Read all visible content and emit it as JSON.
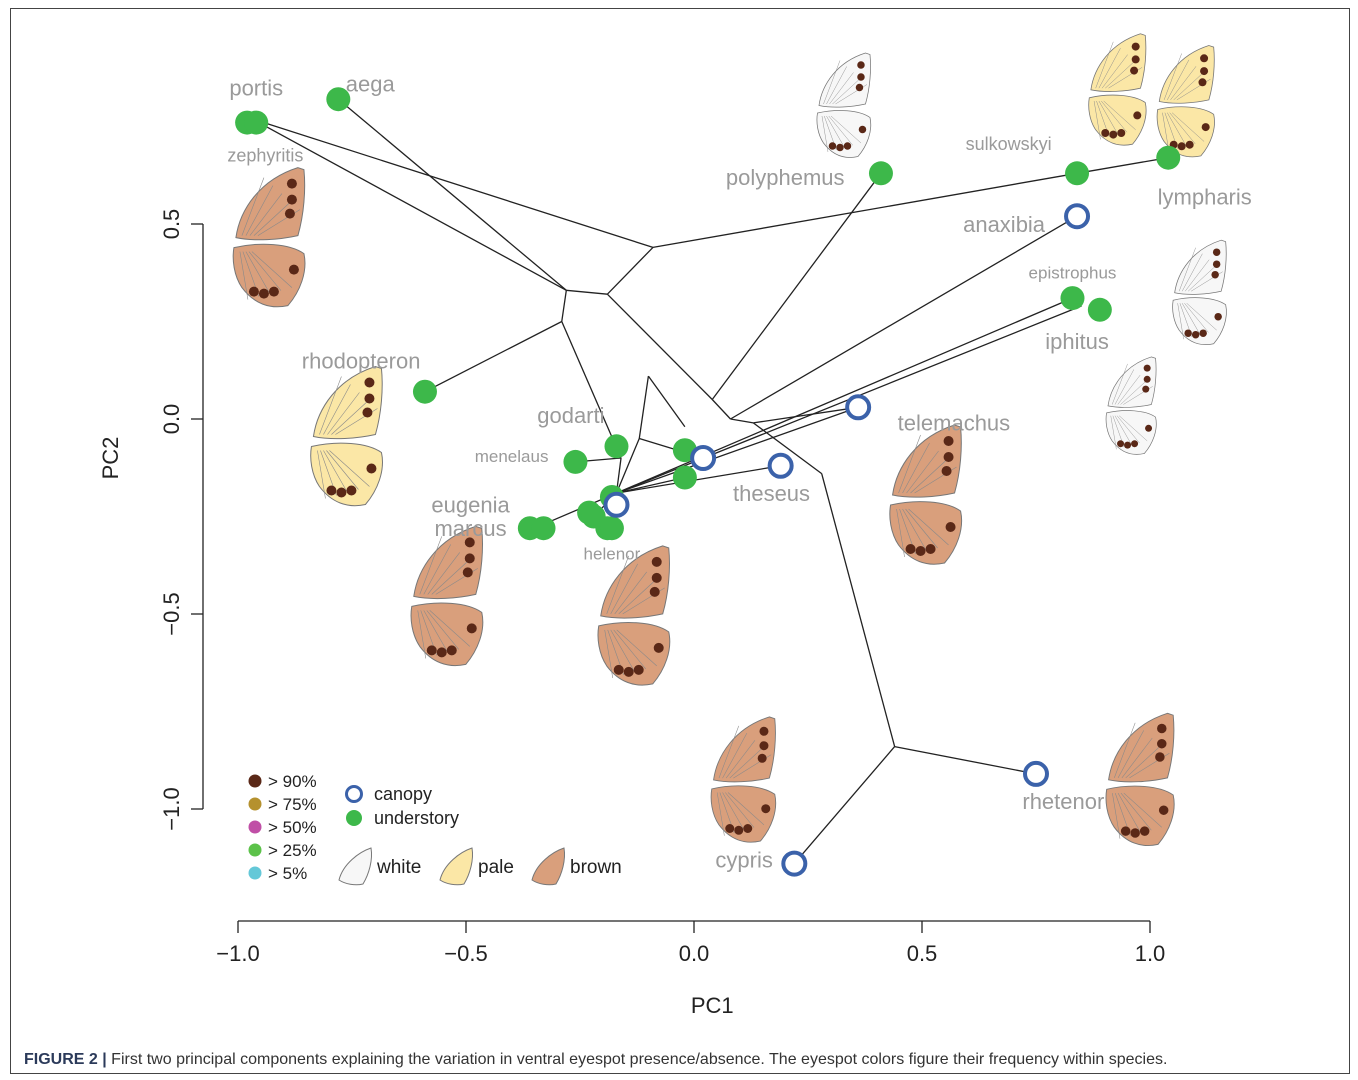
{
  "caption": {
    "label": "FIGURE 2 |",
    "text": "First two principal components explaining the variation in ventral eyespot presence/absence. The eyespot colors figure their frequency within species."
  },
  "colors": {
    "understory": "#3db84a",
    "canopy": "#3b62aa",
    "label": "#9a9a9a",
    "wing_white": "#f7f7f7",
    "wing_pale": "#fbe7a6",
    "wing_brown": "#d99f7c",
    "spot_90": "#5a2817",
    "spot_75": "#b5912e",
    "spot_50": "#c04fa6",
    "spot_25": "#5cc24a",
    "spot_5": "#64c8d8"
  },
  "chart_data": {
    "type": "scatter",
    "xlabel": "PC1",
    "ylabel": "PC2",
    "xlim": [
      -1.0,
      1.2
    ],
    "ylim": [
      -1.2,
      0.85
    ],
    "xticks": [
      "−1.0",
      "−0.5",
      "0.0",
      "0.5",
      "1.0"
    ],
    "xtick_values": [
      -1.0,
      -0.5,
      0.0,
      0.5,
      1.0
    ],
    "yticks": [
      "−1.0",
      "−0.5",
      "0.0",
      "0.5"
    ],
    "ytick_values": [
      -1.0,
      -0.5,
      0.0,
      0.5
    ],
    "points": [
      {
        "x": -0.98,
        "y": 0.76,
        "group": "understory"
      },
      {
        "x": -0.96,
        "y": 0.76,
        "group": "understory"
      },
      {
        "x": -0.78,
        "y": 0.82,
        "group": "understory"
      },
      {
        "x": -0.59,
        "y": 0.07,
        "group": "understory"
      },
      {
        "x": -0.26,
        "y": -0.11,
        "group": "understory"
      },
      {
        "x": -0.17,
        "y": -0.07,
        "group": "understory"
      },
      {
        "x": -0.36,
        "y": -0.28,
        "group": "understory"
      },
      {
        "x": -0.33,
        "y": -0.28,
        "group": "understory"
      },
      {
        "x": -0.23,
        "y": -0.24,
        "group": "understory"
      },
      {
        "x": -0.22,
        "y": -0.25,
        "group": "understory"
      },
      {
        "x": -0.19,
        "y": -0.28,
        "group": "understory"
      },
      {
        "x": -0.18,
        "y": -0.28,
        "group": "understory"
      },
      {
        "x": -0.18,
        "y": -0.2,
        "group": "understory"
      },
      {
        "x": -0.02,
        "y": -0.08,
        "group": "understory"
      },
      {
        "x": -0.02,
        "y": -0.15,
        "group": "understory"
      },
      {
        "x": 0.41,
        "y": 0.63,
        "group": "understory"
      },
      {
        "x": 0.84,
        "y": 0.63,
        "group": "understory"
      },
      {
        "x": 1.04,
        "y": 0.67,
        "group": "understory"
      },
      {
        "x": 0.83,
        "y": 0.31,
        "group": "understory"
      },
      {
        "x": 0.89,
        "y": 0.28,
        "group": "understory"
      },
      {
        "x": -0.17,
        "y": -0.22,
        "group": "canopy"
      },
      {
        "x": 0.02,
        "y": -0.1,
        "group": "canopy"
      },
      {
        "x": 0.19,
        "y": -0.12,
        "group": "canopy"
      },
      {
        "x": 0.36,
        "y": 0.03,
        "group": "canopy"
      },
      {
        "x": 0.84,
        "y": 0.52,
        "group": "canopy"
      },
      {
        "x": 0.75,
        "y": -0.91,
        "group": "canopy"
      },
      {
        "x": 0.22,
        "y": -1.14,
        "group": "canopy"
      }
    ],
    "labels": [
      {
        "text": "portis",
        "x": -0.96,
        "y": 0.83,
        "size": 22
      },
      {
        "text": "aega",
        "x": -0.71,
        "y": 0.84,
        "size": 22
      },
      {
        "text": "zephyritis",
        "x": -0.94,
        "y": 0.66,
        "size": 18
      },
      {
        "text": "polyphemus",
        "x": 0.2,
        "y": 0.6,
        "size": 22
      },
      {
        "text": "sulkowskyi",
        "x": 0.69,
        "y": 0.69,
        "size": 18
      },
      {
        "text": "lympharis",
        "x": 1.12,
        "y": 0.55,
        "size": 22
      },
      {
        "text": "anaxibia",
        "x": 0.68,
        "y": 0.48,
        "size": 22
      },
      {
        "text": "epistrophus",
        "x": 0.83,
        "y": 0.36,
        "size": 17
      },
      {
        "text": "iphitus",
        "x": 0.84,
        "y": 0.18,
        "size": 22
      },
      {
        "text": "rhodopteron",
        "x": -0.73,
        "y": 0.13,
        "size": 22
      },
      {
        "text": "godarti",
        "x": -0.27,
        "y": -0.01,
        "size": 22
      },
      {
        "text": "menelaus",
        "x": -0.4,
        "y": -0.11,
        "size": 17
      },
      {
        "text": "telemachus",
        "x": 0.57,
        "y": -0.03,
        "size": 22
      },
      {
        "text": "theseus",
        "x": 0.17,
        "y": -0.21,
        "size": 22
      },
      {
        "text": "eugenia",
        "x": -0.49,
        "y": -0.24,
        "size": 22
      },
      {
        "text": "marcus",
        "x": -0.49,
        "y": -0.3,
        "size": 22
      },
      {
        "text": "helenor",
        "x": -0.18,
        "y": -0.36,
        "size": 17
      },
      {
        "text": "rhetenor",
        "x": 0.81,
        "y": -1.0,
        "size": 22
      },
      {
        "text": "cypris",
        "x": 0.11,
        "y": -1.15,
        "size": 22
      }
    ],
    "edges": [
      [
        [
          -0.97,
          0.77
        ],
        [
          -0.09,
          0.44
        ]
      ],
      [
        [
          -0.97,
          0.77
        ],
        [
          -0.28,
          0.33
        ]
      ],
      [
        [
          -0.78,
          0.82
        ],
        [
          -0.28,
          0.33
        ]
      ],
      [
        [
          -0.09,
          0.44
        ],
        [
          -0.19,
          0.32
        ]
      ],
      [
        [
          -0.09,
          0.44
        ],
        [
          0.84,
          0.63
        ]
      ],
      [
        [
          0.84,
          0.63
        ],
        [
          1.04,
          0.67
        ]
      ],
      [
        [
          -0.28,
          0.33
        ],
        [
          -0.19,
          0.32
        ]
      ],
      [
        [
          -0.28,
          0.33
        ],
        [
          -0.29,
          0.25
        ]
      ],
      [
        [
          -0.29,
          0.25
        ],
        [
          -0.59,
          0.07
        ]
      ],
      [
        [
          -0.29,
          0.25
        ],
        [
          -0.16,
          -0.1
        ]
      ],
      [
        [
          -0.19,
          0.32
        ],
        [
          0.04,
          0.05
        ]
      ],
      [
        [
          0.04,
          0.05
        ],
        [
          0.08,
          0.0
        ]
      ],
      [
        [
          0.04,
          0.05
        ],
        [
          0.41,
          0.63
        ]
      ],
      [
        [
          0.08,
          0.0
        ],
        [
          0.13,
          -0.01
        ]
      ],
      [
        [
          0.13,
          -0.01
        ],
        [
          0.28,
          -0.14
        ]
      ],
      [
        [
          0.28,
          -0.14
        ],
        [
          0.44,
          -0.84
        ]
      ],
      [
        [
          0.44,
          -0.84
        ],
        [
          0.75,
          -0.91
        ]
      ],
      [
        [
          0.44,
          -0.84
        ],
        [
          0.22,
          -1.14
        ]
      ],
      [
        [
          0.13,
          -0.01
        ],
        [
          0.36,
          0.03
        ]
      ],
      [
        [
          0.08,
          0.0
        ],
        [
          0.84,
          0.52
        ]
      ],
      [
        [
          -0.1,
          0.11
        ],
        [
          -0.12,
          -0.05
        ]
      ],
      [
        [
          -0.12,
          -0.05
        ],
        [
          0.02,
          -0.1
        ]
      ],
      [
        [
          -0.12,
          -0.05
        ],
        [
          -0.17,
          -0.19
        ]
      ],
      [
        [
          -0.16,
          -0.1
        ],
        [
          -0.26,
          -0.11
        ]
      ],
      [
        [
          -0.16,
          -0.1
        ],
        [
          -0.17,
          -0.19
        ]
      ],
      [
        [
          -0.17,
          -0.19
        ],
        [
          -0.35,
          -0.28
        ]
      ],
      [
        [
          -0.17,
          -0.19
        ],
        [
          0.85,
          0.29
        ]
      ],
      [
        [
          -0.17,
          -0.19
        ],
        [
          0.83,
          0.31
        ]
      ],
      [
        [
          -0.17,
          -0.19
        ],
        [
          0.36,
          0.03
        ]
      ],
      [
        [
          -0.17,
          -0.19
        ],
        [
          0.19,
          -0.12
        ]
      ],
      [
        [
          -0.17,
          -0.19
        ],
        [
          -0.02,
          -0.15
        ]
      ],
      [
        [
          -0.17,
          -0.19
        ],
        [
          -0.22,
          -0.25
        ]
      ],
      [
        [
          -0.02,
          -0.08
        ],
        [
          0.02,
          -0.1
        ]
      ],
      [
        [
          -0.1,
          0.11
        ],
        [
          -0.02,
          -0.02
        ]
      ]
    ],
    "wings": [
      {
        "type": "brown",
        "x": -0.93,
        "y": 0.46,
        "scale": 1.0
      },
      {
        "type": "pale",
        "x": -0.76,
        "y": -0.05,
        "scale": 1.0
      },
      {
        "type": "brown",
        "x": -0.54,
        "y": -0.46,
        "scale": 1.0
      },
      {
        "type": "brown",
        "x": -0.13,
        "y": -0.51,
        "scale": 1.0
      },
      {
        "type": "white",
        "x": 0.33,
        "y": 0.8,
        "scale": 0.75
      },
      {
        "type": "pale",
        "x": 0.93,
        "y": 0.84,
        "scale": 0.8
      },
      {
        "type": "pale",
        "x": 1.08,
        "y": 0.81,
        "scale": 0.8
      },
      {
        "type": "white",
        "x": 1.11,
        "y": 0.32,
        "scale": 0.75
      },
      {
        "type": "white",
        "x": 0.96,
        "y": 0.03,
        "scale": 0.7
      },
      {
        "type": "brown",
        "x": 0.51,
        "y": -0.2,
        "scale": 1.0
      },
      {
        "type": "brown",
        "x": 0.11,
        "y": -0.93,
        "scale": 0.9
      },
      {
        "type": "brown",
        "x": 0.98,
        "y": -0.93,
        "scale": 0.95
      }
    ]
  },
  "legend": {
    "freq": [
      {
        "label": "> 90%",
        "color": "#5a2817"
      },
      {
        "label": "> 75%",
        "color": "#b5912e"
      },
      {
        "label": "> 50%",
        "color": "#c04fa6"
      },
      {
        "label": "> 25%",
        "color": "#5cc24a"
      },
      {
        "label": "> 5%",
        "color": "#64c8d8"
      }
    ],
    "groups": [
      {
        "label": "canopy",
        "key": "canopy"
      },
      {
        "label": "understory",
        "key": "understory"
      }
    ],
    "wings": [
      {
        "label": "white",
        "key": "white"
      },
      {
        "label": "pale",
        "key": "pale"
      },
      {
        "label": "brown",
        "key": "brown"
      }
    ]
  }
}
